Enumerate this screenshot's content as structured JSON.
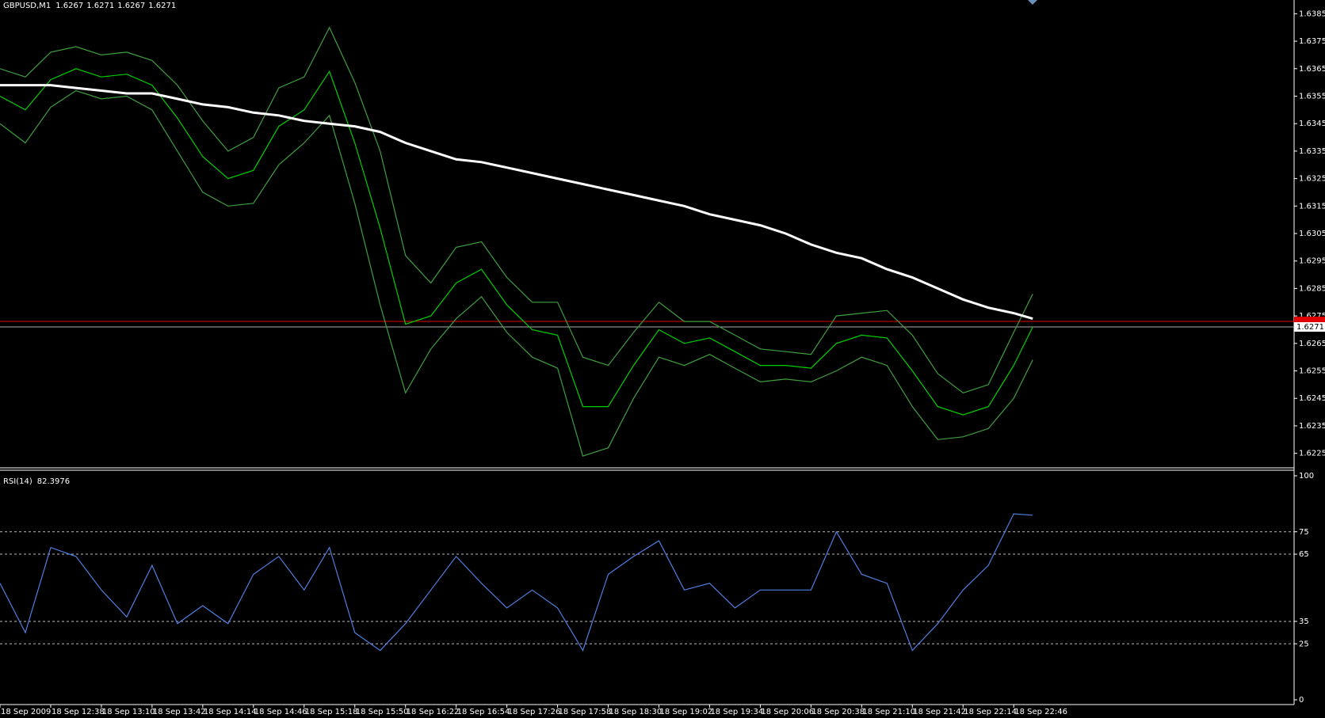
{
  "chart_data": [
    {
      "type": "line",
      "title": "GBPUSD,M1",
      "quote": [
        1.6267,
        1.6271,
        1.6267,
        1.6271
      ],
      "x": [
        0,
        16,
        32,
        48,
        64,
        80,
        96,
        112,
        128,
        144,
        160,
        176,
        192,
        208,
        224,
        240,
        256,
        272,
        288,
        304,
        320,
        336,
        352,
        368,
        384,
        400,
        416,
        432,
        448,
        464,
        480,
        496,
        512,
        528,
        544,
        560,
        576,
        592,
        608,
        624,
        640,
        652
      ],
      "xlim": [
        0,
        817
      ],
      "ylim": [
        1.622,
        1.639
      ],
      "yticks": [
        1.6225,
        1.6235,
        1.6245,
        1.6255,
        1.6265,
        1.6275,
        1.6285,
        1.6295,
        1.6305,
        1.6315,
        1.6325,
        1.6335,
        1.6345,
        1.6355,
        1.6365,
        1.6375,
        1.6385
      ],
      "bid": 1.6271,
      "ask": 1.6273,
      "series": [
        {
          "color": "#3f9f3f",
          "values": [
            1.6365,
            1.6362,
            1.6371,
            1.6373,
            1.637,
            1.6371,
            1.6368,
            1.6359,
            1.6346,
            1.6335,
            1.634,
            1.6358,
            1.6362,
            1.638,
            1.636,
            1.6335,
            1.6297,
            1.6287,
            1.63,
            1.6302,
            1.6289,
            1.628,
            1.628,
            1.626,
            1.6257,
            1.6269,
            1.628,
            1.6273,
            1.6273,
            1.6268,
            1.6263,
            1.6262,
            1.6261,
            1.6275,
            1.6276,
            1.6277,
            1.6268,
            1.6254,
            1.6247,
            1.625,
            1.6269,
            1.6283
          ]
        },
        {
          "color": "#3f9f3f",
          "values": [
            1.6345,
            1.6338,
            1.6351,
            1.6357,
            1.6354,
            1.6355,
            1.635,
            1.6335,
            1.632,
            1.6315,
            1.6316,
            1.633,
            1.6338,
            1.6348,
            1.6316,
            1.6279,
            1.6247,
            1.6263,
            1.6274,
            1.6282,
            1.6269,
            1.626,
            1.6256,
            1.6224,
            1.6227,
            1.6245,
            1.626,
            1.6257,
            1.6261,
            1.6256,
            1.6251,
            1.6252,
            1.6251,
            1.6255,
            1.626,
            1.6257,
            1.6242,
            1.623,
            1.6231,
            1.6234,
            1.6245,
            1.6259
          ]
        },
        {
          "color": "#00d000",
          "values": [
            1.6355,
            1.635,
            1.6361,
            1.6365,
            1.6362,
            1.6363,
            1.6359,
            1.6347,
            1.6333,
            1.6325,
            1.6328,
            1.6344,
            1.635,
            1.6364,
            1.6338,
            1.6307,
            1.6272,
            1.6275,
            1.6287,
            1.6292,
            1.6279,
            1.627,
            1.6268,
            1.6242,
            1.6242,
            1.6257,
            1.627,
            1.6265,
            1.6267,
            1.6262,
            1.6257,
            1.6257,
            1.6256,
            1.6265,
            1.6268,
            1.6267,
            1.6255,
            1.6242,
            1.6239,
            1.6242,
            1.6257,
            1.6271
          ]
        },
        {
          "color": "#ffffff",
          "values": [
            1.6359,
            1.6359,
            1.6359,
            1.6358,
            1.6357,
            1.6356,
            1.6356,
            1.6354,
            1.6352,
            1.6351,
            1.6349,
            1.6348,
            1.6346,
            1.6345,
            1.6344,
            1.6342,
            1.6338,
            1.6335,
            1.6332,
            1.6331,
            1.6329,
            1.6327,
            1.6325,
            1.6323,
            1.6321,
            1.6319,
            1.6317,
            1.6315,
            1.6312,
            1.631,
            1.6308,
            1.6305,
            1.6301,
            1.6298,
            1.6296,
            1.6292,
            1.6289,
            1.6285,
            1.6281,
            1.6278,
            1.6276,
            1.6274
          ]
        }
      ]
    },
    {
      "type": "line",
      "title": "RSI(14)",
      "current": 82.3976,
      "x": [
        0,
        16,
        32,
        48,
        64,
        80,
        96,
        112,
        128,
        144,
        160,
        176,
        192,
        208,
        224,
        240,
        256,
        272,
        288,
        304,
        320,
        336,
        352,
        368,
        384,
        400,
        416,
        432,
        448,
        464,
        480,
        496,
        512,
        528,
        544,
        560,
        576,
        592,
        608,
        624,
        640,
        652
      ],
      "xlim": [
        0,
        817
      ],
      "xticks": [
        {
          "value": 0,
          "label": "18 Sep 2009"
        },
        {
          "value": 32,
          "label": "18 Sep 12:38"
        },
        {
          "value": 64,
          "label": "18 Sep 13:10"
        },
        {
          "value": 96,
          "label": "18 Sep 13:42"
        },
        {
          "value": 128,
          "label": "18 Sep 14:14"
        },
        {
          "value": 160,
          "label": "18 Sep 14:46"
        },
        {
          "value": 192,
          "label": "18 Sep 15:18"
        },
        {
          "value": 224,
          "label": "18 Sep 15:50"
        },
        {
          "value": 256,
          "label": "18 Sep 16:22"
        },
        {
          "value": 288,
          "label": "18 Sep 16:54"
        },
        {
          "value": 320,
          "label": "18 Sep 17:26"
        },
        {
          "value": 352,
          "label": "18 Sep 17:58"
        },
        {
          "value": 384,
          "label": "18 Sep 18:30"
        },
        {
          "value": 416,
          "label": "18 Sep 19:02"
        },
        {
          "value": 448,
          "label": "18 Sep 19:34"
        },
        {
          "value": 480,
          "label": "18 Sep 20:06"
        },
        {
          "value": 512,
          "label": "18 Sep 20:38"
        },
        {
          "value": 544,
          "label": "18 Sep 21:10"
        },
        {
          "value": 576,
          "label": "18 Sep 21:42"
        },
        {
          "value": 608,
          "label": "18 Sep 22:14"
        },
        {
          "value": 640,
          "label": "18 Sep 22:46"
        }
      ],
      "ylim": [
        0,
        100
      ],
      "yticks": [
        0,
        25,
        35,
        65,
        75,
        100
      ],
      "series": [
        {
          "color": "#4f7fe0",
          "values": [
            52,
            30,
            68,
            64,
            49,
            37,
            60,
            34,
            42,
            34,
            56,
            64,
            49,
            68,
            30,
            22,
            34,
            49,
            64,
            52,
            41,
            49,
            41,
            22,
            56,
            64,
            71,
            49,
            52,
            41,
            49,
            49,
            49,
            75,
            56,
            52,
            22,
            34,
            49,
            60,
            83,
            82.3976
          ]
        }
      ]
    }
  ]
}
